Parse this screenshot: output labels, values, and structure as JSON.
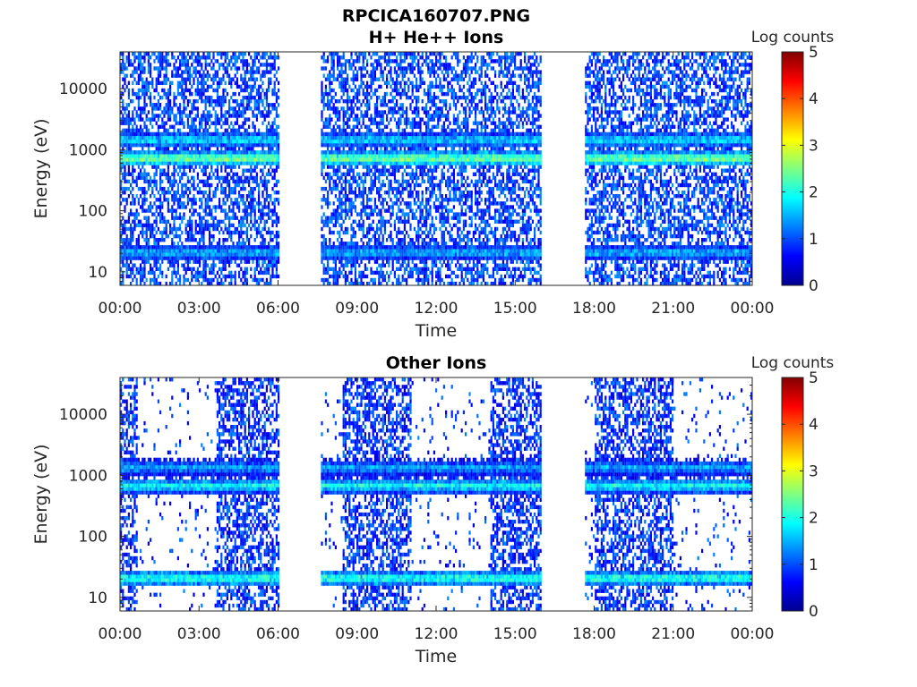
{
  "figure": {
    "title_line1": "RPCICA160707.PNG"
  },
  "colors": {
    "axis": "#262626",
    "background": "#ffffff",
    "colormap": [
      "#00008f",
      "#0000ff",
      "#0080ff",
      "#00ffff",
      "#80ff80",
      "#ffff00",
      "#ff8000",
      "#ff0000",
      "#800000"
    ]
  },
  "chart_data": [
    {
      "type": "heatmap",
      "title": "H+ He++ Ions",
      "xlabel": "Time",
      "ylabel": "Energy (eV)",
      "x_tick_labels": [
        "00:00",
        "03:00",
        "06:00",
        "09:00",
        "12:00",
        "15:00",
        "18:00",
        "21:00",
        "00:00"
      ],
      "x_ticks_hours": [
        0,
        3,
        6,
        9,
        12,
        15,
        18,
        21,
        24
      ],
      "xlim_hours": [
        0,
        24
      ],
      "y_scale": "log",
      "y_tick_labels": [
        "10",
        "100",
        "1000",
        "10000"
      ],
      "y_ticks": [
        10,
        100,
        1000,
        10000
      ],
      "ylim": [
        6,
        40000
      ],
      "colorbar": {
        "label": "Log counts",
        "range": [
          0,
          5
        ],
        "tick_labels": [
          "0",
          "1",
          "2",
          "3",
          "4",
          "5"
        ],
        "colormap": "jet"
      },
      "data_intervals_hours": [
        [
          0,
          6.0
        ],
        [
          7.6,
          15.95
        ],
        [
          17.6,
          24.0
        ]
      ],
      "dense_intervals_hours": [
        [
          0,
          6.0
        ],
        [
          7.6,
          15.95
        ],
        [
          17.6,
          24.0
        ]
      ],
      "bands": [
        {
          "energy_ev": 700,
          "log_counts": 2.6
        },
        {
          "energy_ev": 1400,
          "log_counts": 1.8
        },
        {
          "energy_ev": 20,
          "log_counts": 1.6
        }
      ],
      "background_log_counts": 0.5
    },
    {
      "type": "heatmap",
      "title": "Other Ions",
      "xlabel": "Time",
      "ylabel": "Energy (eV)",
      "x_tick_labels": [
        "00:00",
        "03:00",
        "06:00",
        "09:00",
        "12:00",
        "15:00",
        "18:00",
        "21:00",
        "00:00"
      ],
      "x_ticks_hours": [
        0,
        3,
        6,
        9,
        12,
        15,
        18,
        21,
        24
      ],
      "xlim_hours": [
        0,
        24
      ],
      "y_scale": "log",
      "y_tick_labels": [
        "10",
        "100",
        "1000",
        "10000"
      ],
      "y_ticks": [
        10,
        100,
        1000,
        10000
      ],
      "ylim": [
        6,
        40000
      ],
      "colorbar": {
        "label": "Log counts",
        "range": [
          0,
          5
        ],
        "tick_labels": [
          "0",
          "1",
          "2",
          "3",
          "4",
          "5"
        ],
        "colormap": "jet"
      },
      "data_intervals_hours": [
        [
          0,
          6.0
        ],
        [
          7.6,
          15.95
        ],
        [
          17.6,
          24.0
        ]
      ],
      "dense_intervals_hours": [
        [
          0,
          0.6
        ],
        [
          3.6,
          6.0
        ],
        [
          8.4,
          11.0
        ],
        [
          14.0,
          15.95
        ],
        [
          18.0,
          21.0
        ]
      ],
      "bands": [
        {
          "energy_ev": 650,
          "log_counts": 2.0
        },
        {
          "energy_ev": 1300,
          "log_counts": 1.5
        },
        {
          "energy_ev": 20,
          "log_counts": 2.2
        }
      ],
      "background_log_counts": 0.4
    }
  ]
}
